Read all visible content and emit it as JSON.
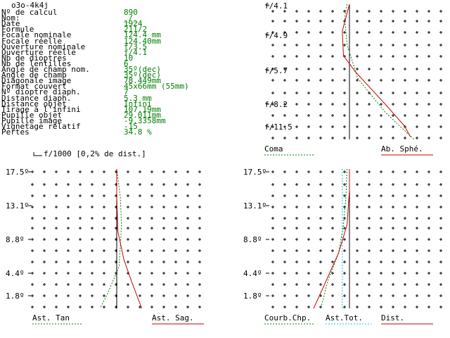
{
  "header": {
    "title": "o3o-4k4j"
  },
  "params": [
    {
      "label": "Nº de calcul",
      "value": "890"
    },
    {
      "label": "Nom:",
      "value": "_/_"
    },
    {
      "label": "Date",
      "value": "1924"
    },
    {
      "label": "Formule",
      "value": "211/2"
    },
    {
      "label": "Focale nominale",
      "value": "124.4 mm"
    },
    {
      "label": "Focale réelle",
      "value": "124.40mm"
    },
    {
      "label": "Ouverture nominale",
      "value": "f/3.5"
    },
    {
      "label": "Ouverture réelle",
      "value": "f/4.1"
    },
    {
      "label": "Nb de dioptres",
      "value": "10"
    },
    {
      "label": "Nb de lentilles",
      "value": "6"
    },
    {
      "label": "Angle de champ nom.",
      "value": "35º(dec)"
    },
    {
      "label": "Angle de champ",
      "value": "35º(dec)"
    },
    {
      "label": "Diagonale image",
      "value": "78.449mm"
    },
    {
      "label": "Format couvert",
      "value": "45x66mm (55mm)"
    },
    {
      "label": "Nº dioptre diaph.",
      "value": "7"
    },
    {
      "label": "Distance diaph.",
      "value": "5.3 mm"
    },
    {
      "label": "Distance objet",
      "value": "Infini"
    },
    {
      "label": "Tirage à l'infini",
      "value": "107.19mm"
    },
    {
      "label": "Pupille objet",
      "value": "29.011mm"
    },
    {
      "label": "Pupille image",
      "value": "-9.3358mm"
    },
    {
      "label": "Vignetage relatif",
      "value": "-15"
    },
    {
      "label": "Pertes",
      "value": "34.8 %"
    }
  ],
  "scale_note": "f/1000 [0,2% de dist.]",
  "colors": {
    "green": "#008000",
    "red": "#cc0000",
    "cyan": "#00c8e0",
    "black": "#000000"
  },
  "chart_data": [
    {
      "type": "line",
      "name": "spherical-coma",
      "y_ticks": [
        "f/4.1",
        "f/4.9",
        "f/5.7",
        "f/8.2",
        "f/11.5"
      ],
      "grid": true,
      "series": [
        {
          "name": "Coma",
          "color": "green",
          "dash": true,
          "points": [
            [
              -0.2,
              1
            ],
            [
              -0.4,
              0.9
            ],
            [
              -0.2,
              0.7
            ],
            [
              0.7,
              0.45
            ],
            [
              3.0,
              0.2
            ],
            [
              5.4,
              0
            ]
          ]
        },
        {
          "name": "Ab. Sphé.",
          "color": "red",
          "dash": false,
          "points": [
            [
              0,
              1
            ],
            [
              -0.6,
              0.8
            ],
            [
              -0.5,
              0.62
            ],
            [
              0.5,
              0.5
            ],
            [
              3.1,
              0.25
            ],
            [
              4.6,
              0.1
            ],
            [
              5.1,
              0.02
            ]
          ]
        }
      ],
      "legend_left": "Coma",
      "legend_right": "Ab. Sphé."
    },
    {
      "type": "line",
      "name": "astigmatism",
      "y_ticks": [
        "17.5º",
        "13.1º",
        "8.8º",
        "4.4º",
        "1.8º"
      ],
      "grid": true,
      "series": [
        {
          "name": "Ast. Tan",
          "color": "green",
          "dash": true,
          "points": [
            [
              0,
              1
            ],
            [
              0.3,
              0.8
            ],
            [
              0.4,
              0.6
            ],
            [
              0.2,
              0.3
            ],
            [
              -0.8,
              0.1
            ],
            [
              -1.4,
              0
            ]
          ]
        },
        {
          "name": "Ast. Sag.",
          "color": "red",
          "dash": false,
          "points": [
            [
              0,
              1
            ],
            [
              0,
              0.8
            ],
            [
              0.1,
              0.55
            ],
            [
              0.6,
              0.35
            ],
            [
              1.3,
              0.18
            ],
            [
              2.1,
              0
            ]
          ]
        },
        {
          "name": "axis",
          "color": "black",
          "dash": false,
          "points": [
            [
              0,
              1
            ],
            [
              0,
              0
            ]
          ]
        }
      ],
      "legend_left": "Ast. Tan",
      "legend_right": "Ast. Sag."
    },
    {
      "type": "line",
      "name": "field-curvature-distortion",
      "y_ticks": [
        "17.5º",
        "13.1º",
        "8.8º",
        "4.4º",
        "1.8º"
      ],
      "grid": true,
      "series": [
        {
          "name": "Courb.Chp.",
          "color": "green",
          "dash": true,
          "points": [
            [
              -0.2,
              1
            ],
            [
              -0.3,
              0.8
            ],
            [
              -0.5,
              0.6
            ],
            [
              -0.9,
              0.4
            ],
            [
              -1.8,
              0.2
            ],
            [
              -2.4,
              0
            ]
          ]
        },
        {
          "name": "Ast.Tot.",
          "color": "cyan",
          "dash": true,
          "points": [
            [
              -0.6,
              1
            ],
            [
              -0.6,
              0
            ]
          ]
        },
        {
          "name": "Dist.",
          "color": "red",
          "dash": false,
          "points": [
            [
              0,
              1
            ],
            [
              0,
              0.85
            ],
            [
              -0.2,
              0.6
            ],
            [
              -0.9,
              0.4
            ],
            [
              -2.2,
              0.15
            ],
            [
              -3.0,
              0
            ]
          ]
        },
        {
          "name": "axis",
          "color": "black",
          "dash": false,
          "points": [
            [
              0,
              1
            ],
            [
              0,
              0
            ]
          ]
        }
      ],
      "legend_left": "Courb.Chp.",
      "legend_mid": "Ast.Tot.",
      "legend_right": "Dist."
    }
  ]
}
